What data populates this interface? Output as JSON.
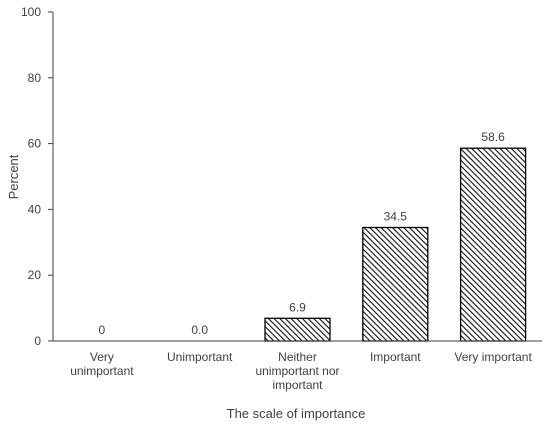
{
  "chart_data": {
    "type": "bar",
    "categories": [
      [
        "Very",
        "unimportant"
      ],
      [
        "Unimportant"
      ],
      [
        "Neither",
        "unimportant nor",
        "important"
      ],
      [
        "Important"
      ],
      [
        "Very important"
      ]
    ],
    "values": [
      0,
      0.0,
      6.9,
      34.5,
      58.6
    ],
    "data_labels": [
      "0",
      "0.0",
      "6.9",
      "34.5",
      "58.6"
    ],
    "title": "",
    "xlabel": "The scale of importance",
    "ylabel": "Percent",
    "ylim": [
      0,
      100
    ],
    "yticks": [
      0,
      20,
      40,
      60,
      80,
      100
    ],
    "grid": false,
    "bar_fill": "diagonal-hatch",
    "colors": {
      "bar": "#000000",
      "axis": "#404040"
    }
  }
}
